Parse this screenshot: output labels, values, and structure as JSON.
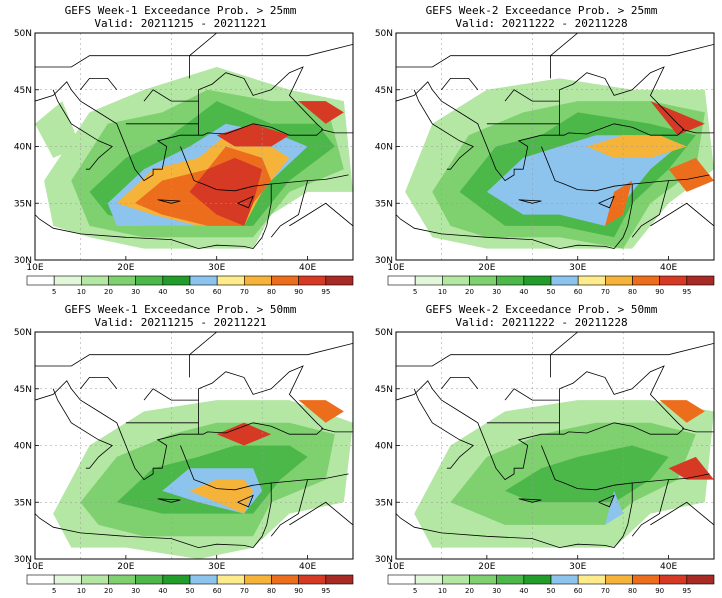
{
  "panels": [
    {
      "title": "GEFS Week-1 Exceedance Prob. > 25mm",
      "valid": "Valid: 20211215 - 20211221",
      "field": "w1_25"
    },
    {
      "title": "GEFS Week-2 Exceedance Prob. > 25mm",
      "valid": "Valid: 20211222 - 20211228",
      "field": "w2_25"
    },
    {
      "title": "GEFS Week-1 Exceedance Prob. > 50mm",
      "valid": "Valid: 20211215 - 20211221",
      "field": "w1_50"
    },
    {
      "title": "GEFS Week-2 Exceedance Prob. > 50mm",
      "valid": "Valid: 20211222 - 20211228",
      "field": "w2_50"
    }
  ],
  "map": {
    "lat_labels": [
      "50N",
      "45N",
      "40N",
      "35N",
      "30N"
    ],
    "lon_labels": [
      "10E",
      "20E",
      "30E",
      "40E"
    ]
  },
  "colorbar": {
    "labels": [
      "5",
      "10",
      "20",
      "30",
      "40",
      "50",
      "60",
      "70",
      "80",
      "90",
      "95"
    ],
    "colors": [
      "#ffffff",
      "#e2f6d9",
      "#b4e6a4",
      "#7fd06f",
      "#4cb84a",
      "#229c2b",
      "#8cc4ee",
      "#fdeb8c",
      "#f6b33a",
      "#ec6e1d",
      "#d63a24",
      "#a82a25"
    ]
  }
}
